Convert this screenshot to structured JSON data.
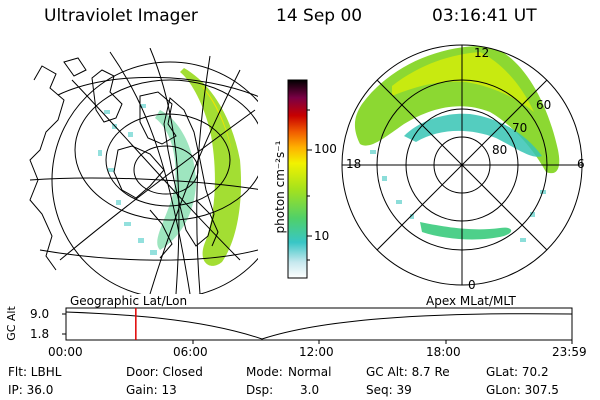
{
  "header": {
    "instrument": "Ultraviolet Imager",
    "date": "14 Sep 00",
    "time": "03:16:41 UT"
  },
  "colorbar": {
    "unit_label": "photon cm⁻²s⁻¹",
    "ticks": [
      "100",
      "10"
    ]
  },
  "left_panel": {
    "caption": "Geographic Lat/Lon"
  },
  "right_panel": {
    "caption": "Apex MLat/MLT",
    "mlt_labels": [
      "12",
      "18",
      "6",
      "0"
    ],
    "mlat_labels": [
      "60",
      "70",
      "80"
    ]
  },
  "timeline": {
    "axis_label": "GC Alt",
    "y_ticks": [
      "9.0",
      "1.8"
    ],
    "x_ticks": [
      "00:00",
      "06:00",
      "12:00",
      "18:00",
      "23:59"
    ],
    "current_time_fraction": 0.138
  },
  "status": {
    "filter": "Flt: LBHL",
    "ip": "IP: 36.0",
    "door": "Door: Closed",
    "gain": "Gain: 13",
    "mode_label": "Mode:",
    "mode_value": "Normal",
    "dsp_label": "Dsp:",
    "dsp_value": "3.0",
    "gcalt": "GC Alt: 8.7 Re",
    "seq": "Seq: 39",
    "glat": "GLat: 70.2",
    "glon": "GLon: 307.5"
  },
  "colors": {
    "timeline_marker": "#e00000"
  }
}
